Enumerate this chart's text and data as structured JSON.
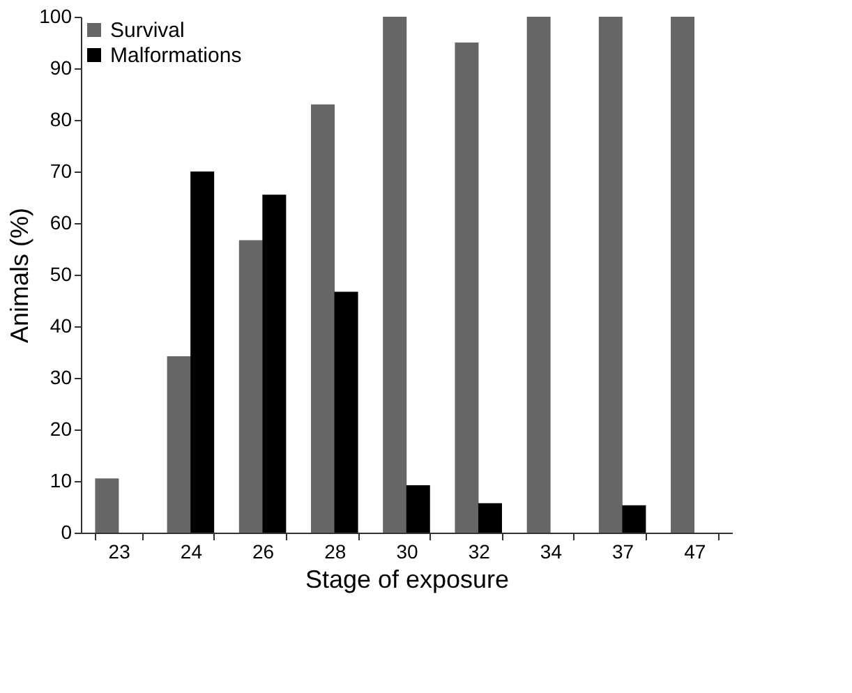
{
  "chart_data": {
    "type": "bar",
    "xlabel": "Stage of exposure",
    "ylabel": "Animals (%)",
    "categories": [
      "23",
      "24",
      "26",
      "28",
      "30",
      "32",
      "34",
      "37",
      "47"
    ],
    "series": [
      {
        "name": "Survival",
        "color": "#666666",
        "values": [
          10.5,
          34.2,
          56.7,
          83,
          100,
          95,
          100,
          100,
          100
        ]
      },
      {
        "name": "Malformations",
        "color": "#000000",
        "values": [
          0,
          70,
          65.5,
          46.7,
          9.2,
          5.7,
          0,
          5.3,
          0
        ]
      }
    ],
    "ylim": [
      0,
      100
    ],
    "yticks": [
      0,
      10,
      20,
      30,
      40,
      50,
      60,
      70,
      80,
      90,
      100
    ],
    "grid": false,
    "legend": "top left"
  }
}
